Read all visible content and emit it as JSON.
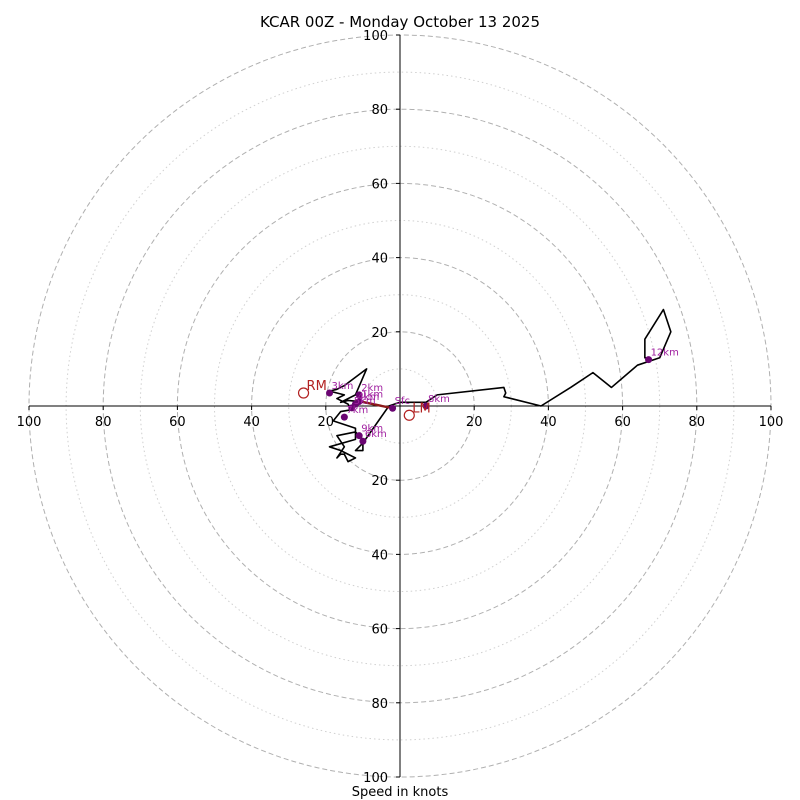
{
  "chart_data": {
    "type": "hodograph",
    "title": "KCAR 00Z - Monday October 13 2025",
    "xlabel": "Speed in knots",
    "range_max": 100,
    "rings_major": [
      20,
      40,
      60,
      80,
      100
    ],
    "rings_minor": [
      10,
      30,
      50,
      70,
      90
    ],
    "x_ticks": [
      {
        "value": -100,
        "label": "100"
      },
      {
        "value": -80,
        "label": "80"
      },
      {
        "value": -60,
        "label": "60"
      },
      {
        "value": -40,
        "label": "40"
      },
      {
        "value": -20,
        "label": "20"
      },
      {
        "value": 20,
        "label": "20"
      },
      {
        "value": 40,
        "label": "40"
      },
      {
        "value": 60,
        "label": "60"
      },
      {
        "value": 80,
        "label": "80"
      },
      {
        "value": 100,
        "label": "100"
      }
    ],
    "y_ticks": [
      {
        "value": 100,
        "label": "100"
      },
      {
        "value": 80,
        "label": "80"
      },
      {
        "value": 60,
        "label": "60"
      },
      {
        "value": 40,
        "label": "40"
      },
      {
        "value": 20,
        "label": "20"
      },
      {
        "value": -20,
        "label": "20"
      },
      {
        "value": -40,
        "label": "40"
      },
      {
        "value": -60,
        "label": "60"
      },
      {
        "value": -80,
        "label": "80"
      },
      {
        "value": -100,
        "label": "100"
      }
    ],
    "hodograph_line": [
      [
        -2,
        -0.6
      ],
      [
        -7,
        0.5
      ],
      [
        -11,
        1.2
      ],
      [
        -14,
        1.5
      ],
      [
        -16,
        1
      ],
      [
        -12,
        3
      ],
      [
        -9,
        10
      ],
      [
        -15,
        5.5
      ],
      [
        -17,
        4.5
      ],
      [
        -19,
        4
      ],
      [
        -15,
        3
      ],
      [
        -17,
        2
      ],
      [
        -14,
        0.5
      ],
      [
        -13,
        -1
      ],
      [
        -16,
        -1.5
      ],
      [
        -18,
        -4
      ],
      [
        -12,
        -6
      ],
      [
        -12,
        -9
      ],
      [
        -19,
        -11
      ],
      [
        -16,
        -12
      ],
      [
        -14,
        -13
      ],
      [
        -12,
        -14
      ],
      [
        -14,
        -15
      ],
      [
        -15,
        -13
      ],
      [
        -16,
        -13
      ],
      [
        -17,
        -14
      ],
      [
        -15,
        -11
      ],
      [
        -17,
        -8
      ],
      [
        -12,
        -7
      ],
      [
        -10,
        -9
      ],
      [
        -10,
        -12
      ],
      [
        -12,
        -12
      ],
      [
        -10,
        -10
      ],
      [
        -3,
        0
      ],
      [
        0,
        1
      ],
      [
        7,
        1
      ],
      [
        10,
        3
      ],
      [
        28,
        5
      ],
      [
        28.5,
        3.5
      ],
      [
        28,
        2.5
      ],
      [
        38,
        0
      ],
      [
        46,
        5
      ],
      [
        52,
        9
      ],
      [
        57,
        5
      ],
      [
        64,
        11
      ],
      [
        70,
        13
      ],
      [
        73,
        20
      ],
      [
        71,
        26
      ],
      [
        66,
        18
      ],
      [
        66,
        13
      ],
      [
        67,
        13
      ]
    ],
    "overlay_segment": [
      [
        -2,
        -0.6
      ],
      [
        -12,
        1.5
      ]
    ],
    "height_markers": [
      {
        "label": "Sfc",
        "u": -2,
        "v": -0.6
      },
      {
        "label": "1km",
        "u": -11,
        "v": 1.2
      },
      {
        "label": "2km",
        "u": -11,
        "v": 3
      },
      {
        "label": "3km",
        "u": -19,
        "v": 3.5
      },
      {
        "label": "4km",
        "u": -12,
        "v": 0.5
      },
      {
        "label": "5km",
        "u": -13,
        "v": -0.5
      },
      {
        "label": "6km",
        "u": -10,
        "v": -9.5
      },
      {
        "label": "7km",
        "u": -15,
        "v": -3
      },
      {
        "label": "8km",
        "u": 7,
        "v": 0
      },
      {
        "label": "9km",
        "u": -11,
        "v": -8
      },
      {
        "label": "12km",
        "u": 67,
        "v": 12.5
      }
    ],
    "storm_motion": [
      {
        "label": "RM",
        "u": -26,
        "v": 3.5
      },
      {
        "label": "LM",
        "u": 2.5,
        "v": -2.5
      }
    ],
    "colors": {
      "line": "#000000",
      "marker": "#6a0572",
      "marker_label": "#a020a0",
      "storm": "#b22222",
      "overlay": "#8b1a1a",
      "grid": "#b0b0b0"
    }
  }
}
